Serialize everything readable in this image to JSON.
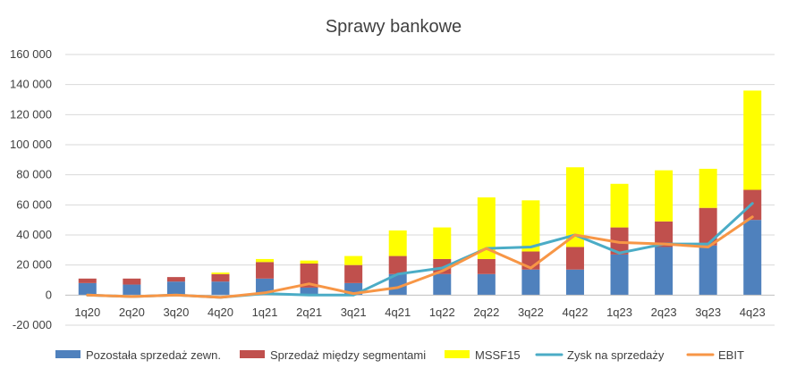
{
  "chart_data": {
    "type": "bar",
    "title": "Sprawy bankowe",
    "xlabel": "",
    "ylabel": "",
    "ylim": [
      -20000,
      160000
    ],
    "yticks": [
      -20000,
      0,
      20000,
      40000,
      60000,
      80000,
      100000,
      120000,
      140000,
      160000
    ],
    "ytick_labels": [
      "-20 000",
      "0",
      "20 000",
      "40 000",
      "60 000",
      "80 000",
      "100 000",
      "120 000",
      "140 000",
      "160 000"
    ],
    "stacked": true,
    "grid": true,
    "legend_position": "bottom",
    "categories": [
      "1q20",
      "2q20",
      "3q20",
      "4q20",
      "1q21",
      "2q21",
      "3q21",
      "4q21",
      "1q22",
      "2q22",
      "3q22",
      "4q22",
      "1q23",
      "2q23",
      "3q23",
      "4q23"
    ],
    "series": [
      {
        "name": "Pozostała sprzedaż zewn.",
        "kind": "bar",
        "color": "#4F81BD",
        "values": [
          8000,
          7000,
          9000,
          9000,
          11000,
          5000,
          8000,
          14000,
          14000,
          14000,
          17000,
          17000,
          27000,
          32000,
          33000,
          50000
        ]
      },
      {
        "name": "Sprzedaż między segmentami",
        "kind": "bar",
        "color": "#C0504D",
        "values": [
          3000,
          4000,
          3000,
          5000,
          11000,
          16000,
          12000,
          12000,
          10000,
          10000,
          12000,
          15000,
          18000,
          17000,
          25000,
          20000
        ]
      },
      {
        "name": "MSSF15",
        "kind": "bar",
        "color": "#FFFF00",
        "values": [
          0,
          0,
          0,
          1000,
          2000,
          2000,
          6000,
          17000,
          21000,
          41000,
          34000,
          53000,
          29000,
          34000,
          26000,
          66000
        ]
      },
      {
        "name": "Zysk na sprzedaży",
        "kind": "line",
        "color": "#4BACC6",
        "values": [
          0,
          -1000,
          0,
          -1500,
          1000,
          0,
          0,
          14000,
          18000,
          31000,
          32000,
          40000,
          28000,
          34000,
          34000,
          61000
        ]
      },
      {
        "name": "EBIT",
        "kind": "line",
        "color": "#F79646",
        "values": [
          0,
          -1000,
          0,
          -1500,
          1500,
          7500,
          1000,
          5000,
          16000,
          31000,
          18000,
          40000,
          35000,
          34000,
          32000,
          52000
        ]
      }
    ]
  }
}
